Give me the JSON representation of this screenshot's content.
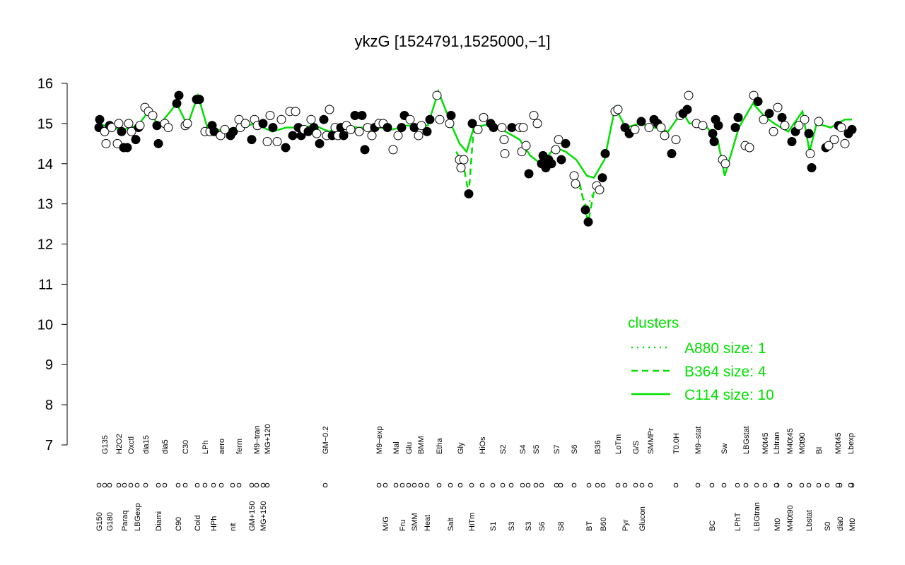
{
  "chart_data": {
    "type": "line",
    "title": "ykzG [1524791,1525000,−1]",
    "ylim": [
      7,
      16
    ],
    "yticks": [
      7,
      8,
      9,
      10,
      11,
      12,
      13,
      14,
      15,
      16
    ],
    "xlim": [
      0,
      1120
    ],
    "xticks": [
      {
        "value": 45,
        "label": "G150"
      },
      {
        "value": 60,
        "label": "G180"
      },
      {
        "value": 81,
        "label": "Paraq"
      },
      {
        "value": 99,
        "label": "LBGexp"
      },
      {
        "value": 129,
        "label": "Diami"
      },
      {
        "value": 157,
        "label": "C90"
      },
      {
        "value": 184,
        "label": "Cold"
      },
      {
        "value": 207,
        "label": "HPh"
      },
      {
        "value": 234,
        "label": "nit"
      },
      {
        "value": 261,
        "label": "GM+150"
      },
      {
        "value": 277,
        "label": "MG+150"
      },
      {
        "value": 450,
        "label": "M/G"
      },
      {
        "value": 474,
        "label": "Fru"
      },
      {
        "value": 491,
        "label": "SMM"
      },
      {
        "value": 509,
        "label": "Heat"
      },
      {
        "value": 542,
        "label": "Salt"
      },
      {
        "value": 572,
        "label": "HiTm"
      },
      {
        "value": 602,
        "label": "S1"
      },
      {
        "value": 628,
        "label": "S3"
      },
      {
        "value": 652,
        "label": "S3"
      },
      {
        "value": 671,
        "label": "S6"
      },
      {
        "value": 698,
        "label": "S8"
      },
      {
        "value": 738,
        "label": "BT"
      },
      {
        "value": 758,
        "label": "B60"
      },
      {
        "value": 789,
        "label": "Pyr"
      },
      {
        "value": 813,
        "label": "Glucon"
      },
      {
        "value": 912,
        "label": "BC"
      },
      {
        "value": 948,
        "label": "LPhT"
      },
      {
        "value": 975,
        "label": "LBGtran"
      },
      {
        "value": 1004,
        "label": "Mt0"
      },
      {
        "value": 1022,
        "label": "M40t90"
      },
      {
        "value": 1049,
        "label": "Lbstat"
      },
      {
        "value": 1075,
        "label": "S0"
      },
      {
        "value": 1093,
        "label": "dia0"
      },
      {
        "value": 1110,
        "label": "Mt0"
      }
    ],
    "xticks_top": [
      {
        "value": 53,
        "label": "G135"
      },
      {
        "value": 73,
        "label": "H2O2"
      },
      {
        "value": 90,
        "label": "Oxctl"
      },
      {
        "value": 111,
        "label": "dia15"
      },
      {
        "value": 138,
        "label": "dia5"
      },
      {
        "value": 167,
        "label": "C30"
      },
      {
        "value": 195,
        "label": "LPh"
      },
      {
        "value": 218,
        "label": "aero"
      },
      {
        "value": 243,
        "label": "ferm"
      },
      {
        "value": 268,
        "label": "M9−tran"
      },
      {
        "value": 283,
        "label": "MG+120"
      },
      {
        "value": 365,
        "label": "GM−0.2"
      },
      {
        "value": 441,
        "label": "M9−exp"
      },
      {
        "value": 465,
        "label": "Mal"
      },
      {
        "value": 483,
        "label": "Glu"
      },
      {
        "value": 500,
        "label": "BMM"
      },
      {
        "value": 526,
        "label": "Etha"
      },
      {
        "value": 556,
        "label": "Gly"
      },
      {
        "value": 587,
        "label": "HiOs"
      },
      {
        "value": 616,
        "label": "S2"
      },
      {
        "value": 644,
        "label": "S4"
      },
      {
        "value": 663,
        "label": "S5"
      },
      {
        "value": 692,
        "label": "S7"
      },
      {
        "value": 717,
        "label": "S6"
      },
      {
        "value": 750,
        "label": "B36"
      },
      {
        "value": 779,
        "label": "LoTm"
      },
      {
        "value": 804,
        "label": "G/S"
      },
      {
        "value": 825,
        "label": "SMMPr"
      },
      {
        "value": 861,
        "label": "T0.0H"
      },
      {
        "value": 892,
        "label": "M9−stat"
      },
      {
        "value": 929,
        "label": "Sw"
      },
      {
        "value": 960,
        "label": "LBGstat"
      },
      {
        "value": 987,
        "label": "M0t45"
      },
      {
        "value": 1003,
        "label": "Lbtran"
      },
      {
        "value": 1022,
        "label": "M40t45"
      },
      {
        "value": 1039,
        "label": "M0t90"
      },
      {
        "value": 1063,
        "label": "BI"
      },
      {
        "value": 1090,
        "label": "M0t45"
      },
      {
        "value": 1108,
        "label": "Lbexp"
      }
    ],
    "points": [
      [
        45,
        14.9,
        1
      ],
      [
        46,
        15.1,
        1
      ],
      [
        53,
        14.8,
        0
      ],
      [
        55,
        14.5,
        0
      ],
      [
        60,
        14.95,
        1
      ],
      [
        63,
        14.9,
        0
      ],
      [
        71,
        14.5,
        0
      ],
      [
        73,
        15.0,
        0
      ],
      [
        77,
        14.8,
        1
      ],
      [
        80,
        14.4,
        1
      ],
      [
        85,
        14.4,
        1
      ],
      [
        87,
        15.0,
        0
      ],
      [
        91,
        14.8,
        0
      ],
      [
        97,
        14.6,
        1
      ],
      [
        101,
        14.9,
        1
      ],
      [
        103,
        14.95,
        0
      ],
      [
        110,
        15.4,
        0
      ],
      [
        115,
        15.3,
        0
      ],
      [
        121,
        15.2,
        0
      ],
      [
        127,
        14.95,
        1
      ],
      [
        129,
        14.5,
        1
      ],
      [
        138,
        15.0,
        0
      ],
      [
        143,
        14.9,
        0
      ],
      [
        155,
        15.5,
        1
      ],
      [
        158,
        15.7,
        1
      ],
      [
        167,
        14.95,
        0
      ],
      [
        170,
        15.0,
        0
      ],
      [
        183,
        15.6,
        1
      ],
      [
        187,
        15.6,
        1
      ],
      [
        195,
        14.8,
        0
      ],
      [
        202,
        14.8,
        0
      ],
      [
        205,
        14.95,
        1
      ],
      [
        208,
        14.8,
        1
      ],
      [
        217,
        14.7,
        0
      ],
      [
        223,
        14.85,
        0
      ],
      [
        231,
        14.7,
        1
      ],
      [
        235,
        14.8,
        1
      ],
      [
        243,
        15.1,
        0
      ],
      [
        245,
        14.9,
        0
      ],
      [
        252,
        15.0,
        0
      ],
      [
        261,
        14.6,
        1
      ],
      [
        265,
        15.1,
        0
      ],
      [
        269,
        14.95,
        0
      ],
      [
        277,
        15.0,
        1
      ],
      [
        283,
        14.55,
        0
      ],
      [
        287,
        15.2,
        0
      ],
      [
        291,
        14.9,
        1
      ],
      [
        297,
        14.55,
        0
      ],
      [
        303,
        15.1,
        0
      ],
      [
        309,
        14.4,
        1
      ],
      [
        315,
        15.3,
        0
      ],
      [
        319,
        14.7,
        1
      ],
      [
        323,
        15.3,
        0
      ],
      [
        327,
        14.9,
        1
      ],
      [
        331,
        14.7,
        1
      ],
      [
        335,
        14.85,
        0
      ],
      [
        341,
        14.8,
        1
      ],
      [
        345,
        15.1,
        0
      ],
      [
        349,
        14.9,
        1
      ],
      [
        353,
        14.75,
        0
      ],
      [
        357,
        14.5,
        1
      ],
      [
        363,
        15.1,
        1
      ],
      [
        367,
        14.7,
        0
      ],
      [
        371,
        15.35,
        0
      ],
      [
        375,
        14.7,
        1
      ],
      [
        379,
        14.9,
        0
      ],
      [
        383,
        14.7,
        0
      ],
      [
        387,
        14.9,
        1
      ],
      [
        391,
        14.7,
        1
      ],
      [
        395,
        14.95,
        0
      ],
      [
        401,
        14.85,
        0
      ],
      [
        407,
        15.2,
        1
      ],
      [
        413,
        14.8,
        0
      ],
      [
        417,
        15.2,
        1
      ],
      [
        421,
        14.35,
        1
      ],
      [
        425,
        14.9,
        0
      ],
      [
        431,
        14.7,
        0
      ],
      [
        435,
        14.9,
        1
      ],
      [
        441,
        15.0,
        0
      ],
      [
        447,
        15.0,
        0
      ],
      [
        453,
        14.9,
        1
      ],
      [
        461,
        14.35,
        0
      ],
      [
        468,
        14.7,
        0
      ],
      [
        473,
        14.9,
        1
      ],
      [
        477,
        15.2,
        1
      ],
      [
        485,
        15.1,
        0
      ],
      [
        491,
        14.9,
        1
      ],
      [
        497,
        14.7,
        0
      ],
      [
        501,
        14.95,
        0
      ],
      [
        509,
        14.8,
        1
      ],
      [
        513,
        15.1,
        1
      ],
      [
        523,
        15.7,
        0
      ],
      [
        527,
        15.1,
        0
      ],
      [
        541,
        15.0,
        0
      ],
      [
        543,
        15.2,
        1
      ],
      [
        555,
        14.1,
        0
      ],
      [
        557,
        13.9,
        0
      ],
      [
        561,
        14.1,
        0
      ],
      [
        568,
        13.25,
        1
      ],
      [
        573,
        15.0,
        1
      ],
      [
        581,
        14.85,
        0
      ],
      [
        589,
        15.15,
        0
      ],
      [
        599,
        15.0,
        1
      ],
      [
        603,
        14.9,
        1
      ],
      [
        615,
        14.9,
        0
      ],
      [
        618,
        14.6,
        0
      ],
      [
        619,
        14.25,
        0
      ],
      [
        629,
        14.9,
        1
      ],
      [
        640,
        14.9,
        0
      ],
      [
        643,
        14.3,
        0
      ],
      [
        645,
        14.9,
        0
      ],
      [
        649,
        14.45,
        0
      ],
      [
        653,
        13.75,
        1
      ],
      [
        660,
        15.2,
        0
      ],
      [
        665,
        15.0,
        0
      ],
      [
        671,
        14.0,
        1
      ],
      [
        673,
        14.2,
        1
      ],
      [
        677,
        13.9,
        1
      ],
      [
        681,
        14.1,
        1
      ],
      [
        685,
        14.0,
        1
      ],
      [
        691,
        14.35,
        0
      ],
      [
        695,
        14.6,
        0
      ],
      [
        699,
        14.1,
        1
      ],
      [
        705,
        14.5,
        1
      ],
      [
        717,
        13.7,
        0
      ],
      [
        719,
        13.5,
        0
      ],
      [
        733,
        12.85,
        1
      ],
      [
        737,
        12.55,
        1
      ],
      [
        749,
        13.45,
        0
      ],
      [
        753,
        13.35,
        0
      ],
      [
        757,
        13.65,
        1
      ],
      [
        761,
        14.25,
        1
      ],
      [
        775,
        15.3,
        0
      ],
      [
        779,
        15.35,
        0
      ],
      [
        789,
        14.9,
        1
      ],
      [
        795,
        14.75,
        1
      ],
      [
        803,
        14.85,
        0
      ],
      [
        812,
        15.05,
        1
      ],
      [
        823,
        14.9,
        0
      ],
      [
        830,
        15.1,
        1
      ],
      [
        835,
        15.0,
        1
      ],
      [
        840,
        14.9,
        0
      ],
      [
        845,
        14.7,
        0
      ],
      [
        855,
        14.25,
        1
      ],
      [
        861,
        14.6,
        0
      ],
      [
        867,
        15.2,
        0
      ],
      [
        871,
        15.25,
        1
      ],
      [
        877,
        15.35,
        1
      ],
      [
        879,
        15.7,
        0
      ],
      [
        890,
        15.0,
        0
      ],
      [
        899,
        14.95,
        0
      ],
      [
        913,
        14.75,
        1
      ],
      [
        915,
        14.55,
        1
      ],
      [
        917,
        15.1,
        1
      ],
      [
        921,
        14.95,
        1
      ],
      [
        927,
        14.1,
        0
      ],
      [
        931,
        14.0,
        0
      ],
      [
        945,
        14.9,
        1
      ],
      [
        949,
        15.15,
        1
      ],
      [
        959,
        14.45,
        0
      ],
      [
        965,
        14.4,
        0
      ],
      [
        971,
        15.7,
        0
      ],
      [
        977,
        15.55,
        1
      ],
      [
        985,
        15.1,
        0
      ],
      [
        993,
        15.25,
        1
      ],
      [
        999,
        14.8,
        0
      ],
      [
        1005,
        15.4,
        0
      ],
      [
        1011,
        15.15,
        1
      ],
      [
        1015,
        14.95,
        0
      ],
      [
        1025,
        14.55,
        1
      ],
      [
        1030,
        14.8,
        1
      ],
      [
        1035,
        14.95,
        0
      ],
      [
        1043,
        15.1,
        0
      ],
      [
        1049,
        14.75,
        1
      ],
      [
        1051,
        14.25,
        0
      ],
      [
        1053,
        13.9,
        1
      ],
      [
        1063,
        15.05,
        0
      ],
      [
        1073,
        14.4,
        1
      ],
      [
        1077,
        14.45,
        0
      ],
      [
        1085,
        14.6,
        0
      ],
      [
        1091,
        14.95,
        1
      ],
      [
        1095,
        14.9,
        0
      ],
      [
        1100,
        14.5,
        0
      ],
      [
        1105,
        14.75,
        1
      ],
      [
        1110,
        14.85,
        1
      ]
    ],
    "legend_title": "clusters",
    "series": [
      {
        "name": "A880 size: 1",
        "color": "#00e000",
        "style": "dotted",
        "x": [
          725,
          735,
          745
        ],
        "values": [
          13.4,
          12.9,
          13.3
        ]
      },
      {
        "name": "B364 size: 4",
        "color": "#00e000",
        "style": "dashed",
        "x": [
          550,
          560,
          568,
          575,
          700,
          725,
          733,
          737,
          745
        ],
        "values": [
          14.3,
          14.0,
          13.25,
          14.9,
          null,
          13.5,
          12.85,
          12.55,
          13.3
        ]
      },
      {
        "name": "C114 size: 10",
        "color": "#00e000",
        "style": "solid",
        "x": [
          45,
          60,
          80,
          100,
          115,
          130,
          155,
          170,
          185,
          200,
          220,
          245,
          265,
          290,
          310,
          330,
          350,
          370,
          390,
          410,
          440,
          460,
          480,
          510,
          525,
          545,
          555,
          565,
          575,
          600,
          620,
          640,
          655,
          670,
          690,
          705,
          720,
          735,
          745,
          760,
          775,
          790,
          810,
          830,
          850,
          870,
          880,
          900,
          920,
          930,
          950,
          970,
          985,
          1000,
          1020,
          1040,
          1050,
          1060,
          1080,
          1100,
          1110
        ],
        "values": [
          15.0,
          14.9,
          14.85,
          14.95,
          15.3,
          14.95,
          15.5,
          14.95,
          15.7,
          14.8,
          14.85,
          14.9,
          15.0,
          14.8,
          14.9,
          14.9,
          14.95,
          14.8,
          14.95,
          14.9,
          14.9,
          14.85,
          14.95,
          14.95,
          15.8,
          14.9,
          14.5,
          14.3,
          14.9,
          15.0,
          14.8,
          14.6,
          14.2,
          14.0,
          14.4,
          14.3,
          14.1,
          13.7,
          13.65,
          14.1,
          15.4,
          14.9,
          15.0,
          14.9,
          14.8,
          15.3,
          15.0,
          15.0,
          14.6,
          13.7,
          14.9,
          15.5,
          15.2,
          15.0,
          14.8,
          15.3,
          14.3,
          15.0,
          14.9,
          15.1,
          15.1
        ]
      }
    ]
  }
}
